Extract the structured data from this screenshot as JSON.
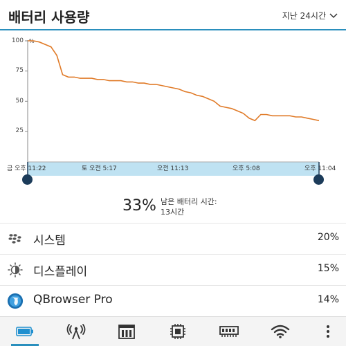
{
  "header": {
    "title": "배터리 사용량",
    "range": "지난 24시간"
  },
  "chart_data": {
    "type": "line",
    "y_ticks": [
      "100",
      "75",
      "50",
      "25"
    ],
    "y_unit": "%",
    "ylim": [
      0,
      100
    ],
    "x_labels": [
      "금 오후 11:22",
      "토 오전 5:17",
      "오전 11:13",
      "오후 5:08",
      "오후 11:04"
    ],
    "line_color": "#e07a27",
    "series": [
      {
        "x": [
          0,
          1,
          2,
          3,
          4,
          5,
          6,
          7,
          8,
          9,
          10,
          11,
          12,
          13,
          14,
          15,
          16,
          17,
          18,
          19,
          20,
          21,
          22,
          23,
          24,
          25,
          26,
          27,
          28,
          29,
          30,
          31,
          32,
          33,
          34,
          35,
          36,
          37,
          38,
          39,
          40,
          41,
          42,
          43,
          44,
          45,
          46,
          47,
          48,
          49,
          50
        ],
        "y": [
          100,
          100,
          99,
          97,
          95,
          88,
          72,
          70,
          70,
          69,
          69,
          69,
          68,
          68,
          67,
          67,
          67,
          66,
          66,
          65,
          65,
          64,
          64,
          63,
          62,
          61,
          60,
          58,
          57,
          55,
          54,
          52,
          50,
          46,
          45,
          44,
          42,
          40,
          36,
          34,
          39,
          39,
          38,
          38,
          38,
          38,
          37,
          37,
          36,
          35,
          34
        ]
      }
    ]
  },
  "summary": {
    "percent": "33%",
    "remaining_label": "남은 배터리 시간:",
    "remaining_value": "13시간"
  },
  "apps": [
    {
      "name": "시스템",
      "value": "20%",
      "icon": "blackberry-logo-icon"
    },
    {
      "name": "디스플레이",
      "value": "15%",
      "icon": "brightness-icon"
    },
    {
      "name": "QBrowser Pro",
      "value": "14%",
      "icon": "globe-icon"
    }
  ],
  "bottom_tabs": [
    "battery-icon",
    "antenna-icon",
    "memory-icon",
    "cpu-icon",
    "ram-icon",
    "wifi-icon",
    "more-icon"
  ],
  "colors": {
    "accent": "#2a8fbd",
    "line": "#e07a27",
    "selection": "#bfe2f2",
    "handle": "#1c3c5a"
  }
}
